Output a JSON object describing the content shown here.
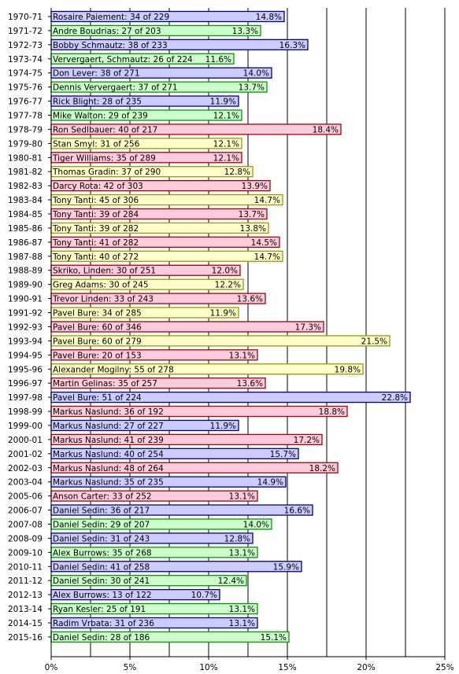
{
  "chart_data": {
    "type": "bar",
    "orientation": "horizontal",
    "title": "",
    "xlabel": "",
    "ylabel": "",
    "xlim": [
      0,
      25
    ],
    "xticks": [
      "0%",
      "5%",
      "10%",
      "15%",
      "20%",
      "25%"
    ],
    "grid": "vertical",
    "legend": "none",
    "colors": {
      "green": {
        "fill": "#ccffcc",
        "stroke": "#009900"
      },
      "blue": {
        "fill": "#ccccff",
        "stroke": "#000080"
      },
      "red": {
        "fill": "#ffccdd",
        "stroke": "#aa0000"
      },
      "yellow": {
        "fill": "#ffffcc",
        "stroke": "#999900"
      }
    },
    "bars": [
      {
        "season": "1970-71",
        "label": "Rosaire Paiement: 34 of 229",
        "value": 14.8,
        "value_label": "14.8%",
        "color": "blue"
      },
      {
        "season": "1971-72",
        "label": "Andre Boudrias: 27 of 203",
        "value": 13.3,
        "value_label": "13.3%",
        "color": "green"
      },
      {
        "season": "1972-73",
        "label": "Bobby Schmautz: 38 of 233",
        "value": 16.3,
        "value_label": "16.3%",
        "color": "blue"
      },
      {
        "season": "1973-74",
        "label": "Ververgaert, Schmautz: 26 of 224",
        "value": 11.6,
        "value_label": "11.6%",
        "color": "green"
      },
      {
        "season": "1974-75",
        "label": "Don Lever: 38 of 271",
        "value": 14.0,
        "value_label": "14.0%",
        "color": "blue"
      },
      {
        "season": "1975-76",
        "label": "Dennis Ververgaert: 37 of 271",
        "value": 13.7,
        "value_label": "13.7%",
        "color": "green"
      },
      {
        "season": "1976-77",
        "label": "Rick Blight: 28 of 235",
        "value": 11.9,
        "value_label": "11.9%",
        "color": "blue"
      },
      {
        "season": "1977-78",
        "label": "Mike Walton: 29 of 239",
        "value": 12.1,
        "value_label": "12.1%",
        "color": "green"
      },
      {
        "season": "1978-79",
        "label": "Ron Sedlbauer: 40 of 217",
        "value": 18.4,
        "value_label": "18.4%",
        "color": "red"
      },
      {
        "season": "1979-80",
        "label": "Stan Smyl: 31 of 256",
        "value": 12.1,
        "value_label": "12.1%",
        "color": "yellow"
      },
      {
        "season": "1980-81",
        "label": "Tiger Williams: 35 of 289",
        "value": 12.1,
        "value_label": "12.1%",
        "color": "red"
      },
      {
        "season": "1981-82",
        "label": "Thomas Gradin: 37 of 290",
        "value": 12.8,
        "value_label": "12.8%",
        "color": "yellow"
      },
      {
        "season": "1982-83",
        "label": "Darcy Rota: 42 of 303",
        "value": 13.9,
        "value_label": "13.9%",
        "color": "red"
      },
      {
        "season": "1983-84",
        "label": "Tony Tanti: 45 of 306",
        "value": 14.7,
        "value_label": "14.7%",
        "color": "yellow"
      },
      {
        "season": "1984-85",
        "label": "Tony Tanti: 39 of 284",
        "value": 13.7,
        "value_label": "13.7%",
        "color": "red"
      },
      {
        "season": "1985-86",
        "label": "Tony Tanti: 39 of 282",
        "value": 13.8,
        "value_label": "13.8%",
        "color": "yellow"
      },
      {
        "season": "1986-87",
        "label": "Tony Tanti: 41 of 282",
        "value": 14.5,
        "value_label": "14.5%",
        "color": "red"
      },
      {
        "season": "1987-88",
        "label": "Tony Tanti: 40 of 272",
        "value": 14.7,
        "value_label": "14.7%",
        "color": "yellow"
      },
      {
        "season": "1988-89",
        "label": "Skriko, Linden: 30 of 251",
        "value": 12.0,
        "value_label": "12.0%",
        "color": "red"
      },
      {
        "season": "1989-90",
        "label": "Greg Adams: 30 of 245",
        "value": 12.2,
        "value_label": "12.2%",
        "color": "yellow"
      },
      {
        "season": "1990-91",
        "label": "Trevor Linden: 33 of 243",
        "value": 13.6,
        "value_label": "13.6%",
        "color": "red"
      },
      {
        "season": "1991-92",
        "label": "Pavel Bure: 34 of 285",
        "value": 11.9,
        "value_label": "11.9%",
        "color": "yellow"
      },
      {
        "season": "1992-93",
        "label": "Pavel Bure: 60 of 346",
        "value": 17.3,
        "value_label": "17.3%",
        "color": "red"
      },
      {
        "season": "1993-94",
        "label": "Pavel Bure: 60 of 279",
        "value": 21.5,
        "value_label": "21.5%",
        "color": "yellow"
      },
      {
        "season": "1994-95",
        "label": "Pavel Bure: 20 of 153",
        "value": 13.1,
        "value_label": "13.1%",
        "color": "red"
      },
      {
        "season": "1995-96",
        "label": "Alexander Mogilny: 55 of 278",
        "value": 19.8,
        "value_label": "19.8%",
        "color": "yellow"
      },
      {
        "season": "1996-97",
        "label": "Martin Gelinas: 35 of 257",
        "value": 13.6,
        "value_label": "13.6%",
        "color": "red"
      },
      {
        "season": "1997-98",
        "label": "Pavel Bure: 51 of 224",
        "value": 22.8,
        "value_label": "22.8%",
        "color": "blue"
      },
      {
        "season": "1998-99",
        "label": "Markus Naslund: 36 of 192",
        "value": 18.8,
        "value_label": "18.8%",
        "color": "red"
      },
      {
        "season": "1999-00",
        "label": "Markus Naslund: 27 of 227",
        "value": 11.9,
        "value_label": "11.9%",
        "color": "blue"
      },
      {
        "season": "2000-01",
        "label": "Markus Naslund: 41 of 239",
        "value": 17.2,
        "value_label": "17.2%",
        "color": "red"
      },
      {
        "season": "2001-02",
        "label": "Markus Naslund: 40 of 254",
        "value": 15.7,
        "value_label": "15.7%",
        "color": "blue"
      },
      {
        "season": "2002-03",
        "label": "Markus Naslund: 48 of 264",
        "value": 18.2,
        "value_label": "18.2%",
        "color": "red"
      },
      {
        "season": "2003-04",
        "label": "Markus Naslund: 35 of 235",
        "value": 14.9,
        "value_label": "14.9%",
        "color": "blue"
      },
      {
        "season": "2005-06",
        "label": "Anson Carter: 33 of 252",
        "value": 13.1,
        "value_label": "13.1%",
        "color": "red"
      },
      {
        "season": "2006-07",
        "label": "Daniel Sedin: 36 of 217",
        "value": 16.6,
        "value_label": "16.6%",
        "color": "blue"
      },
      {
        "season": "2007-08",
        "label": "Daniel Sedin: 29 of 207",
        "value": 14.0,
        "value_label": "14.0%",
        "color": "green"
      },
      {
        "season": "2008-09",
        "label": "Daniel Sedin: 31 of 243",
        "value": 12.8,
        "value_label": "12.8%",
        "color": "blue"
      },
      {
        "season": "2009-10",
        "label": "Alex Burrows: 35 of 268",
        "value": 13.1,
        "value_label": "13.1%",
        "color": "green"
      },
      {
        "season": "2010-11",
        "label": "Daniel Sedin: 41 of 258",
        "value": 15.9,
        "value_label": "15.9%",
        "color": "blue"
      },
      {
        "season": "2011-12",
        "label": "Daniel Sedin: 30 of 241",
        "value": 12.4,
        "value_label": "12.4%",
        "color": "green"
      },
      {
        "season": "2012-13",
        "label": "Alex Burrows: 13 of 122",
        "value": 10.7,
        "value_label": "10.7%",
        "color": "blue"
      },
      {
        "season": "2013-14",
        "label": "Ryan Kesler: 25 of 191",
        "value": 13.1,
        "value_label": "13.1%",
        "color": "green"
      },
      {
        "season": "2014-15",
        "label": "Radim Vrbata: 31 of 236",
        "value": 13.1,
        "value_label": "13.1%",
        "color": "blue"
      },
      {
        "season": "2015-16",
        "label": "Daniel Sedin: 28 of 186",
        "value": 15.1,
        "value_label": "15.1%",
        "color": "green"
      }
    ]
  }
}
